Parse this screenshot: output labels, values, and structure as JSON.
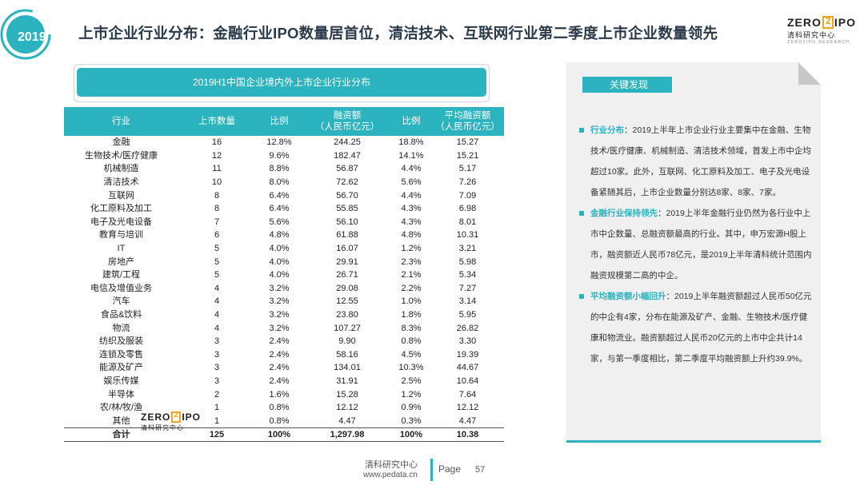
{
  "header": {
    "year": "2019",
    "title": "上市企业行业分布：金融行业IPO数量居首位，清洁技术、互联网行业第二季度上市企业数量领先"
  },
  "logo": {
    "left": "ZERO",
    "right": "IPO",
    "cn": "清科研究中心",
    "en": "ZERO2IPO RESEARCH"
  },
  "table": {
    "caption": "2019H1中国企业境内外上市企业行业分布",
    "headers": [
      "行业",
      "上市数量",
      "比例",
      "融资额\n（人民币亿元）",
      "比例",
      "平均融资额\n（人民币亿元）"
    ],
    "rows": [
      [
        "金融",
        "16",
        "12.8%",
        "244.25",
        "18.8%",
        "15.27"
      ],
      [
        "生物技术/医疗健康",
        "12",
        "9.6%",
        "182.47",
        "14.1%",
        "15.21"
      ],
      [
        "机械制造",
        "11",
        "8.8%",
        "56.87",
        "4.4%",
        "5.17"
      ],
      [
        "清洁技术",
        "10",
        "8.0%",
        "72.62",
        "5.6%",
        "7.26"
      ],
      [
        "互联网",
        "8",
        "6.4%",
        "56.70",
        "4.4%",
        "7.09"
      ],
      [
        "化工原料及加工",
        "8",
        "6.4%",
        "55.85",
        "4.3%",
        "6.98"
      ],
      [
        "电子及光电设备",
        "7",
        "5.6%",
        "56.10",
        "4.3%",
        "8.01"
      ],
      [
        "教育与培训",
        "6",
        "4.8%",
        "61.88",
        "4.8%",
        "10.31"
      ],
      [
        "IT",
        "5",
        "4.0%",
        "16.07",
        "1.2%",
        "3.21"
      ],
      [
        "房地产",
        "5",
        "4.0%",
        "29.91",
        "2.3%",
        "5.98"
      ],
      [
        "建筑/工程",
        "5",
        "4.0%",
        "26.71",
        "2.1%",
        "5.34"
      ],
      [
        "电信及增值业务",
        "4",
        "3.2%",
        "29.08",
        "2.2%",
        "7.27"
      ],
      [
        "汽车",
        "4",
        "3.2%",
        "12.55",
        "1.0%",
        "3.14"
      ],
      [
        "食品&饮料",
        "4",
        "3.2%",
        "23.80",
        "1.8%",
        "5.95"
      ],
      [
        "物流",
        "4",
        "3.2%",
        "107.27",
        "8.3%",
        "26.82"
      ],
      [
        "纺织及服装",
        "3",
        "2.4%",
        "9.90",
        "0.8%",
        "3.30"
      ],
      [
        "连锁及零售",
        "3",
        "2.4%",
        "58.16",
        "4.5%",
        "19.39"
      ],
      [
        "能源及矿产",
        "3",
        "2.4%",
        "134.01",
        "10.3%",
        "44.67"
      ],
      [
        "娱乐传媒",
        "3",
        "2.4%",
        "31.91",
        "2.5%",
        "10.64"
      ],
      [
        "半导体",
        "2",
        "1.6%",
        "15.28",
        "1.2%",
        "7.64"
      ],
      [
        "农/林/牧/渔",
        "1",
        "0.8%",
        "12.12",
        "0.9%",
        "12.12"
      ],
      [
        "其他",
        "1",
        "0.8%",
        "4.47",
        "0.3%",
        "4.47"
      ]
    ],
    "total": [
      "合计",
      "125",
      "100%",
      "1,297.98",
      "100%",
      "10.38"
    ]
  },
  "key_findings": {
    "tag": "关键发现",
    "items": [
      {
        "lead": "行业分布",
        "text": "：2019上半年上市企业行业主要集中在金融、生物技术/医疗健康、机械制造、清洁技术领域，首发上市中企均超过10家。此外，互联网、化工原料及加工、电子及光电设备紧随其后，上市企业数量分别达8家、8家、7家。"
      },
      {
        "lead": "金融行业保持领先",
        "text": "：2019上半年金融行业仍然为各行业中上市中企数量、总融资额最高的行业。其中，申万宏源H股上市，融资额近人民币78亿元，是2019上半年清科统计范围内融资规模第二高的中企。"
      },
      {
        "lead": "平均融资额小幅回升",
        "text": "：2019上半年融资额超过人民币50亿元的中企有4家，分布在能源及矿产、金融、生物技术/医疗健康和物流业。融资额超过人民币20亿元的上市中企共计14家，与第一季度相比，第二季度平均融资额上升约39.9%。"
      }
    ]
  },
  "footer": {
    "org": "清科研究中心",
    "url": "www.pedata.cn",
    "page_label": "Page",
    "page_number": "57"
  },
  "colors": {
    "accent": "#2bb3c0",
    "logo_orange": "#f3a21b",
    "panel_bg": "#f0f0f0"
  }
}
